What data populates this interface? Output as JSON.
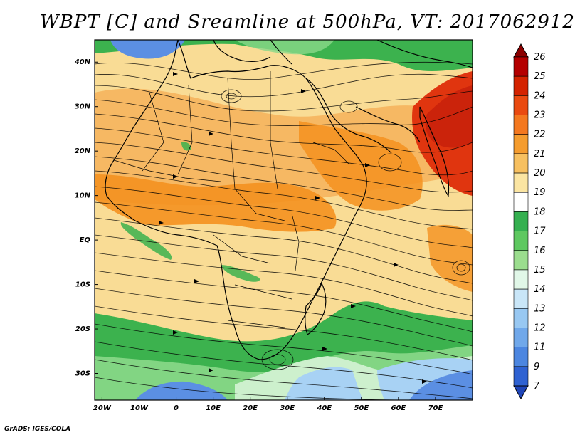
{
  "title": "WBPT [C] and Sreamline at 500hPa, VT: 2017062912",
  "credit": "GrADS: IGES/COLA",
  "lat_labels": [
    "40N",
    "30N",
    "20N",
    "10N",
    "EQ",
    "10S",
    "20S",
    "30S"
  ],
  "lat_values": [
    40,
    30,
    20,
    10,
    0,
    -10,
    -20,
    -30
  ],
  "lon_labels": [
    "20W",
    "10W",
    "0",
    "10E",
    "20E",
    "30E",
    "40E",
    "50E",
    "60E",
    "70E"
  ],
  "lon_values": [
    -20,
    -10,
    0,
    10,
    20,
    30,
    40,
    50,
    60,
    70
  ],
  "extent": {
    "lon_min": -22,
    "lon_max": 80,
    "lat_min": -36,
    "lat_max": 45
  },
  "colorbar": {
    "labels": [
      "26",
      "25",
      "24",
      "23",
      "22",
      "21",
      "20",
      "19",
      "18",
      "17",
      "16",
      "15",
      "14",
      "13",
      "12",
      "11",
      "9",
      "7"
    ],
    "colors": [
      "#8b0000",
      "#b40000",
      "#d42300",
      "#ea4a10",
      "#f4781f",
      "#f59c2e",
      "#f7c060",
      "#fbe5a2",
      "#ffffff",
      "#35b050",
      "#5ec860",
      "#9bdd8e",
      "#e1f7e8",
      "#c9e6f8",
      "#98c8f2",
      "#70a8ea",
      "#4c86e0",
      "#2f62d2",
      "#1f45b8"
    ]
  },
  "colors": {
    "hot_red": "#e0350f",
    "orange": "#f4911f",
    "light_orange": "#f6b25a",
    "yellow": "#f9dc95",
    "pale": "#fbeabc",
    "green": "#3cb24e",
    "light_green": "#8ad88a",
    "pale_green": "#cdf0cd",
    "light_blue": "#a8d2f4",
    "blue": "#5b8fe3"
  }
}
